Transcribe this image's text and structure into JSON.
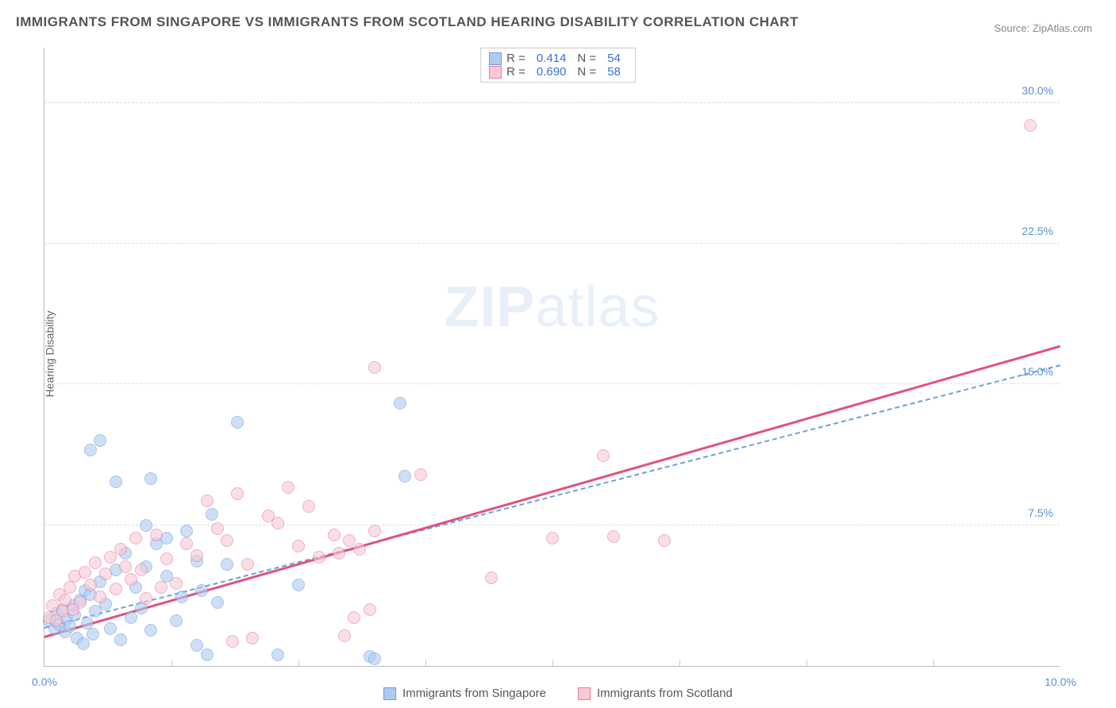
{
  "title": "IMMIGRANTS FROM SINGAPORE VS IMMIGRANTS FROM SCOTLAND HEARING DISABILITY CORRELATION CHART",
  "source": "Source: ZipAtlas.com",
  "ylabel": "Hearing Disability",
  "watermark_a": "ZIP",
  "watermark_b": "atlas",
  "chart": {
    "type": "scatter",
    "xlim": [
      0,
      10
    ],
    "ylim": [
      0,
      33
    ],
    "xticks": [
      {
        "v": 0,
        "label": "0.0%"
      },
      {
        "v": 10,
        "label": "10.0%"
      }
    ],
    "xticks_minor": [
      1.25,
      2.5,
      3.75,
      5,
      6.25,
      7.5,
      8.75
    ],
    "yticks": [
      {
        "v": 7.5,
        "label": "7.5%"
      },
      {
        "v": 15,
        "label": "15.0%"
      },
      {
        "v": 22.5,
        "label": "22.5%"
      },
      {
        "v": 30,
        "label": "30.0%"
      }
    ],
    "grid_color": "#dddddd",
    "axis_color": "#bbbbbb",
    "background_color": "#ffffff",
    "series": [
      {
        "name": "Immigrants from Singapore",
        "color_fill": "#aecbef",
        "color_stroke": "#6a9fe0",
        "marker_size": 16,
        "r": 0.414,
        "n": 54,
        "trend": {
          "x1": 0,
          "y1": 2.0,
          "x2": 10,
          "y2": 16.0,
          "color": "#6a9fe0",
          "dashed": true,
          "width": 2
        },
        "points": [
          [
            0.05,
            2.4
          ],
          [
            0.1,
            2.0
          ],
          [
            0.12,
            2.8
          ],
          [
            0.15,
            2.2
          ],
          [
            0.18,
            3.0
          ],
          [
            0.2,
            1.8
          ],
          [
            0.22,
            2.5
          ],
          [
            0.25,
            2.1
          ],
          [
            0.28,
            3.2
          ],
          [
            0.3,
            2.7
          ],
          [
            0.32,
            1.5
          ],
          [
            0.35,
            3.5
          ],
          [
            0.38,
            1.2
          ],
          [
            0.4,
            4.0
          ],
          [
            0.42,
            2.3
          ],
          [
            0.45,
            3.8
          ],
          [
            0.48,
            1.7
          ],
          [
            0.5,
            2.9
          ],
          [
            0.55,
            4.5
          ],
          [
            0.6,
            3.3
          ],
          [
            0.65,
            2.0
          ],
          [
            0.7,
            5.1
          ],
          [
            0.75,
            1.4
          ],
          [
            0.8,
            6.0
          ],
          [
            0.85,
            2.6
          ],
          [
            0.9,
            4.2
          ],
          [
            0.95,
            3.1
          ],
          [
            1.0,
            5.3
          ],
          [
            1.05,
            1.9
          ],
          [
            1.1,
            6.5
          ],
          [
            1.2,
            4.8
          ],
          [
            1.3,
            2.4
          ],
          [
            1.4,
            7.2
          ],
          [
            1.5,
            5.6
          ],
          [
            1.55,
            4.0
          ],
          [
            1.6,
            0.6
          ],
          [
            1.65,
            8.1
          ],
          [
            1.7,
            3.4
          ],
          [
            0.45,
            11.5
          ],
          [
            0.7,
            9.8
          ],
          [
            1.05,
            10.0
          ],
          [
            1.9,
            13.0
          ],
          [
            1.0,
            7.5
          ],
          [
            1.2,
            6.8
          ],
          [
            1.35,
            3.7
          ],
          [
            1.5,
            1.1
          ],
          [
            1.8,
            5.4
          ],
          [
            2.3,
            0.6
          ],
          [
            3.2,
            0.5
          ],
          [
            3.25,
            0.4
          ],
          [
            3.5,
            14.0
          ],
          [
            3.55,
            10.1
          ],
          [
            2.5,
            4.3
          ],
          [
            0.55,
            12.0
          ]
        ]
      },
      {
        "name": "Immigrants from Scotland",
        "color_fill": "#f7c9d4",
        "color_stroke": "#e87ba0",
        "marker_size": 16,
        "r": 0.69,
        "n": 58,
        "trend": {
          "x1": 0,
          "y1": 1.5,
          "x2": 10,
          "y2": 17.0,
          "color": "#e2517e",
          "dashed": false,
          "width": 3
        },
        "points": [
          [
            0.05,
            2.6
          ],
          [
            0.08,
            3.2
          ],
          [
            0.12,
            2.4
          ],
          [
            0.15,
            3.8
          ],
          [
            0.18,
            2.9
          ],
          [
            0.2,
            3.5
          ],
          [
            0.25,
            4.2
          ],
          [
            0.28,
            3.0
          ],
          [
            0.3,
            4.8
          ],
          [
            0.35,
            3.4
          ],
          [
            0.4,
            5.0
          ],
          [
            0.45,
            4.3
          ],
          [
            0.5,
            5.5
          ],
          [
            0.55,
            3.7
          ],
          [
            0.6,
            4.9
          ],
          [
            0.65,
            5.8
          ],
          [
            0.7,
            4.1
          ],
          [
            0.75,
            6.2
          ],
          [
            0.8,
            5.3
          ],
          [
            0.85,
            4.6
          ],
          [
            0.9,
            6.8
          ],
          [
            0.95,
            5.1
          ],
          [
            1.0,
            3.6
          ],
          [
            1.1,
            7.0
          ],
          [
            1.2,
            5.7
          ],
          [
            1.3,
            4.4
          ],
          [
            1.4,
            6.5
          ],
          [
            1.5,
            5.9
          ],
          [
            1.6,
            8.8
          ],
          [
            1.7,
            7.3
          ],
          [
            1.8,
            6.7
          ],
          [
            1.85,
            1.3
          ],
          [
            1.9,
            9.2
          ],
          [
            2.0,
            5.4
          ],
          [
            2.05,
            1.5
          ],
          [
            2.2,
            8.0
          ],
          [
            2.3,
            7.6
          ],
          [
            2.4,
            9.5
          ],
          [
            2.5,
            6.4
          ],
          [
            2.6,
            8.5
          ],
          [
            2.7,
            5.8
          ],
          [
            2.85,
            7.0
          ],
          [
            2.9,
            6.0
          ],
          [
            2.95,
            1.6
          ],
          [
            3.0,
            6.7
          ],
          [
            3.05,
            2.6
          ],
          [
            3.1,
            6.2
          ],
          [
            3.2,
            3.0
          ],
          [
            3.25,
            7.2
          ],
          [
            3.25,
            15.9
          ],
          [
            3.7,
            10.2
          ],
          [
            4.4,
            4.7
          ],
          [
            5.0,
            6.8
          ],
          [
            5.5,
            11.2
          ],
          [
            5.6,
            6.9
          ],
          [
            6.1,
            6.7
          ],
          [
            9.7,
            28.8
          ],
          [
            1.15,
            4.2
          ]
        ]
      }
    ]
  },
  "legend_top": {
    "rows": [
      {
        "swatch_fill": "#aecbef",
        "swatch_stroke": "#6a9fe0",
        "r_label": "R =",
        "r": "0.414",
        "n_label": "N =",
        "n": "54"
      },
      {
        "swatch_fill": "#f7c9d4",
        "swatch_stroke": "#e87ba0",
        "r_label": "R =",
        "r": "0.690",
        "n_label": "N =",
        "n": "58"
      }
    ]
  },
  "legend_bottom": {
    "items": [
      {
        "swatch_fill": "#aecbef",
        "swatch_stroke": "#6a9fe0",
        "label": "Immigrants from Singapore"
      },
      {
        "swatch_fill": "#f7c9d4",
        "swatch_stroke": "#e87ba0",
        "label": "Immigrants from Scotland"
      }
    ]
  }
}
